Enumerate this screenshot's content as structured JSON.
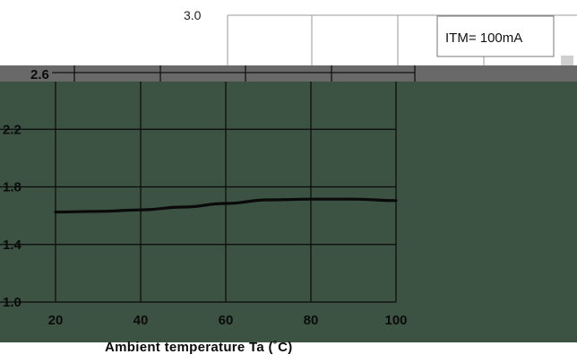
{
  "chart_data": {
    "type": "line",
    "title": "",
    "xlabel": "Ambient temperature Ta (˚C)",
    "ylabel": "",
    "x_ticks": [
      "20",
      "40",
      "60",
      "80",
      "100"
    ],
    "y_ticks": [
      "1.0",
      "1.4",
      "1.8",
      "2.2"
    ],
    "y_ticks_partial": [
      "2.6",
      "3.0"
    ],
    "xlim": [
      20,
      100
    ],
    "ylim": [
      1.0,
      2.6
    ],
    "grid": true,
    "legend": {
      "text": "ITM= 100mA",
      "placement": "top-right"
    },
    "series": [
      {
        "x": [
          20,
          30,
          40,
          50,
          60,
          70,
          80,
          90,
          100
        ],
        "y": [
          1.625,
          1.63,
          1.64,
          1.66,
          1.685,
          1.71,
          1.715,
          1.715,
          1.705
        ]
      }
    ]
  },
  "colors": {
    "dark_panel": "#3c5243",
    "band": "#696969",
    "grid_on_dark": "#0a0a0a",
    "grid_on_white": "#9a9a9a",
    "curve": "#0a0a0a",
    "text": "#0b0b0b"
  }
}
